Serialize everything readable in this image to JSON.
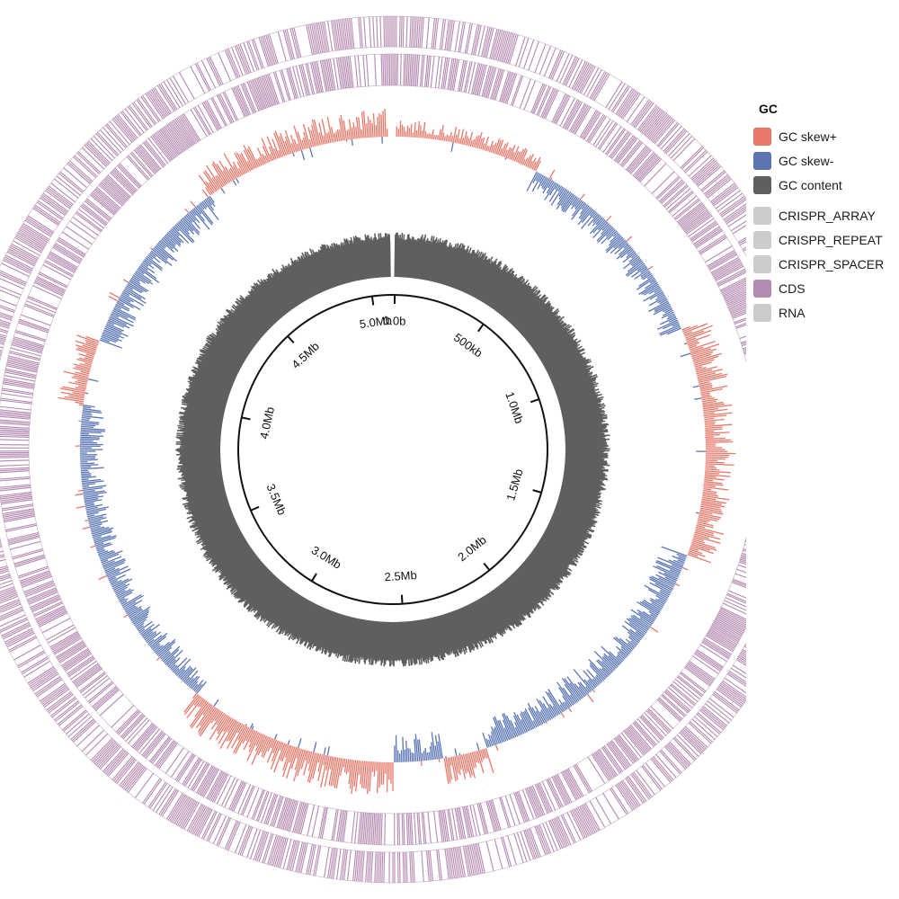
{
  "legend": {
    "title": "GC",
    "items": [
      {
        "key": "gc_skew_plus",
        "label": "GC skew+",
        "color": "#e8786a",
        "icon": "gc-skew-plus-swatch"
      },
      {
        "key": "gc_skew_minus",
        "label": "GC skew-",
        "color": "#5b76b3",
        "icon": "gc-skew-minus-swatch"
      },
      {
        "key": "gc_content",
        "label": "GC content",
        "color": "#5f5f5f",
        "icon": "gc-content-swatch"
      },
      {
        "key": "crispr_array",
        "label": "CRISPR_ARRAY",
        "color": "#cccccc",
        "icon": "crispr-array-swatch"
      },
      {
        "key": "crispr_repeat",
        "label": "CRISPR_REPEAT",
        "color": "#cccccc",
        "icon": "crispr-repeat-swatch"
      },
      {
        "key": "crispr_spacer",
        "label": "CRISPR_SPACER",
        "color": "#cccccc",
        "icon": "crispr-spacer-swatch"
      },
      {
        "key": "cds",
        "label": "CDS",
        "color": "#b48ab0",
        "icon": "cds-swatch"
      },
      {
        "key": "rna",
        "label": "RNA",
        "color": "#cccccc",
        "icon": "rna-swatch"
      }
    ]
  },
  "chart_data": {
    "type": "circular-genome-map",
    "genome_length_mb": 5.1,
    "ticks": [
      {
        "pos_mb": 0.0,
        "label": "0.0b"
      },
      {
        "pos_mb": 0.5,
        "label": "500kb"
      },
      {
        "pos_mb": 1.0,
        "label": "1.0Mb"
      },
      {
        "pos_mb": 1.5,
        "label": "1.5Mb"
      },
      {
        "pos_mb": 2.0,
        "label": "2.0Mb"
      },
      {
        "pos_mb": 2.5,
        "label": "2.5Mb"
      },
      {
        "pos_mb": 3.0,
        "label": "3.0Mb"
      },
      {
        "pos_mb": 3.5,
        "label": "3.5Mb"
      },
      {
        "pos_mb": 4.0,
        "label": "4.0Mb"
      },
      {
        "pos_mb": 4.5,
        "label": "4.5Mb"
      },
      {
        "pos_mb": 5.0,
        "label": "5.0Mb"
      }
    ],
    "gc_skew_profile": [
      {
        "from_mb": 0.0,
        "to_mb": 0.38,
        "sign": "+",
        "level": 0.45
      },
      {
        "from_mb": 0.38,
        "to_mb": 0.95,
        "sign": "-",
        "level": 0.6
      },
      {
        "from_mb": 0.95,
        "to_mb": 1.55,
        "sign": "+",
        "level": 0.8
      },
      {
        "from_mb": 1.55,
        "to_mb": 2.3,
        "sign": "-",
        "level": 0.75
      },
      {
        "from_mb": 2.3,
        "to_mb": 2.42,
        "sign": "+",
        "level": 0.7
      },
      {
        "from_mb": 2.42,
        "to_mb": 2.55,
        "sign": "-",
        "level": 0.75
      },
      {
        "from_mb": 2.55,
        "to_mb": 3.1,
        "sign": "+",
        "level": 0.9
      },
      {
        "from_mb": 3.1,
        "to_mb": 3.95,
        "sign": "-",
        "level": 0.65
      },
      {
        "from_mb": 3.95,
        "to_mb": 4.12,
        "sign": "+",
        "level": 0.7
      },
      {
        "from_mb": 4.12,
        "to_mb": 4.6,
        "sign": "-",
        "level": 0.7
      },
      {
        "from_mb": 4.6,
        "to_mb": 5.1,
        "sign": "+",
        "level": 0.75
      }
    ],
    "gc_content_level": 0.85,
    "features": "CDS",
    "grid": false,
    "legend_position": "top-right"
  }
}
